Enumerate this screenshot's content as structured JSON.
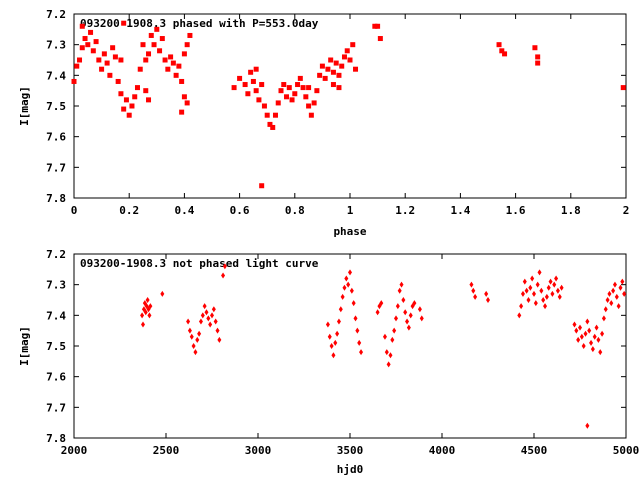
{
  "chart_data": [
    {
      "type": "scatter",
      "title": "093200-1908.3 phased with P=553.0day",
      "xlabel": "phase",
      "ylabel": "I[mag]",
      "xlim": [
        0,
        2
      ],
      "ylim": [
        7.2,
        7.8
      ],
      "y_inverted": true,
      "xticks": [
        0,
        0.2,
        0.4,
        0.6,
        0.8,
        1,
        1.2,
        1.4,
        1.6,
        1.8,
        2
      ],
      "xtick_labels": [
        "0",
        "0.2",
        "0.4",
        "0.6",
        "0.8",
        "1",
        "1.2",
        "1.4",
        "1.6",
        "1.8",
        "2"
      ],
      "yticks": [
        7.2,
        7.3,
        7.4,
        7.5,
        7.6,
        7.7,
        7.8
      ],
      "ytick_labels": [
        "7.2",
        "7.3",
        "7.4",
        "7.5",
        "7.6",
        "7.7",
        "7.8"
      ],
      "grid": false,
      "marker_color": "#ff0000",
      "series": [
        {
          "points": [
            [
              0.0,
              7.42
            ],
            [
              0.01,
              7.37
            ],
            [
              0.02,
              7.35
            ],
            [
              0.03,
              7.31
            ],
            [
              0.04,
              7.28
            ],
            [
              0.05,
              7.3
            ],
            [
              0.06,
              7.26
            ],
            [
              0.07,
              7.32
            ],
            [
              0.08,
              7.29
            ],
            [
              0.09,
              7.35
            ],
            [
              0.1,
              7.38
            ],
            [
              0.11,
              7.33
            ],
            [
              0.12,
              7.36
            ],
            [
              0.13,
              7.4
            ],
            [
              0.14,
              7.31
            ],
            [
              0.15,
              7.34
            ],
            [
              0.16,
              7.42
            ],
            [
              0.17,
              7.46
            ],
            [
              0.18,
              7.51
            ],
            [
              0.19,
              7.48
            ],
            [
              0.2,
              7.53
            ],
            [
              0.21,
              7.5
            ],
            [
              0.22,
              7.47
            ],
            [
              0.23,
              7.44
            ],
            [
              0.24,
              7.38
            ],
            [
              0.25,
              7.3
            ],
            [
              0.26,
              7.35
            ],
            [
              0.27,
              7.33
            ],
            [
              0.28,
              7.27
            ],
            [
              0.29,
              7.3
            ],
            [
              0.3,
              7.25
            ],
            [
              0.31,
              7.32
            ],
            [
              0.32,
              7.28
            ],
            [
              0.33,
              7.35
            ],
            [
              0.34,
              7.38
            ],
            [
              0.35,
              7.34
            ],
            [
              0.36,
              7.36
            ],
            [
              0.37,
              7.4
            ],
            [
              0.38,
              7.37
            ],
            [
              0.39,
              7.42
            ],
            [
              0.4,
              7.33
            ],
            [
              0.41,
              7.3
            ],
            [
              0.42,
              7.27
            ],
            [
              0.03,
              7.24
            ],
            [
              0.18,
              7.23
            ],
            [
              0.17,
              7.35
            ],
            [
              0.27,
              7.48
            ],
            [
              0.26,
              7.45
            ],
            [
              0.4,
              7.47
            ],
            [
              0.41,
              7.49
            ],
            [
              0.39,
              7.52
            ],
            [
              0.58,
              7.44
            ],
            [
              0.6,
              7.41
            ],
            [
              0.62,
              7.43
            ],
            [
              0.63,
              7.46
            ],
            [
              0.64,
              7.39
            ],
            [
              0.65,
              7.42
            ],
            [
              0.66,
              7.45
            ],
            [
              0.67,
              7.48
            ],
            [
              0.68,
              7.43
            ],
            [
              0.69,
              7.5
            ],
            [
              0.7,
              7.53
            ],
            [
              0.71,
              7.56
            ],
            [
              0.72,
              7.57
            ],
            [
              0.73,
              7.53
            ],
            [
              0.74,
              7.49
            ],
            [
              0.75,
              7.45
            ],
            [
              0.76,
              7.43
            ],
            [
              0.77,
              7.47
            ],
            [
              0.78,
              7.44
            ],
            [
              0.79,
              7.48
            ],
            [
              0.8,
              7.46
            ],
            [
              0.81,
              7.43
            ],
            [
              0.82,
              7.41
            ],
            [
              0.83,
              7.44
            ],
            [
              0.84,
              7.47
            ],
            [
              0.85,
              7.5
            ],
            [
              0.86,
              7.53
            ],
            [
              0.87,
              7.49
            ],
            [
              0.88,
              7.45
            ],
            [
              0.89,
              7.4
            ],
            [
              0.9,
              7.37
            ],
            [
              0.91,
              7.41
            ],
            [
              0.92,
              7.38
            ],
            [
              0.93,
              7.35
            ],
            [
              0.94,
              7.39
            ],
            [
              0.95,
              7.36
            ],
            [
              0.96,
              7.4
            ],
            [
              0.97,
              7.37
            ],
            [
              0.98,
              7.34
            ],
            [
              0.99,
              7.32
            ],
            [
              1.0,
              7.35
            ],
            [
              1.01,
              7.3
            ],
            [
              1.02,
              7.38
            ],
            [
              0.68,
              7.76
            ],
            [
              0.66,
              7.38
            ],
            [
              0.94,
              7.43
            ],
            [
              0.96,
              7.44
            ],
            [
              0.85,
              7.44
            ],
            [
              1.09,
              7.24
            ],
            [
              1.1,
              7.24
            ],
            [
              1.11,
              7.28
            ],
            [
              1.54,
              7.3
            ],
            [
              1.55,
              7.32
            ],
            [
              1.56,
              7.33
            ],
            [
              1.67,
              7.31
            ],
            [
              1.68,
              7.34
            ],
            [
              1.68,
              7.36
            ],
            [
              1.99,
              7.44
            ]
          ]
        }
      ]
    },
    {
      "type": "scatter",
      "title": "093200-1908.3 not phased light curve",
      "xlabel": "hjd0",
      "ylabel": "I[mag]",
      "xlim": [
        2000,
        5000
      ],
      "ylim": [
        7.2,
        7.8
      ],
      "y_inverted": true,
      "xticks": [
        2000,
        2500,
        3000,
        3500,
        4000,
        4500,
        5000
      ],
      "xtick_labels": [
        "2000",
        "2500",
        "3000",
        "3500",
        "4000",
        "4500",
        "5000"
      ],
      "yticks": [
        7.2,
        7.3,
        7.4,
        7.5,
        7.6,
        7.7,
        7.8
      ],
      "ytick_labels": [
        "7.2",
        "7.3",
        "7.4",
        "7.5",
        "7.6",
        "7.7",
        "7.8"
      ],
      "grid": false,
      "marker_color": "#ff0000",
      "series": [
        {
          "points": [
            [
              2370,
              7.4
            ],
            [
              2375,
              7.43
            ],
            [
              2380,
              7.38
            ],
            [
              2385,
              7.36
            ],
            [
              2390,
              7.39
            ],
            [
              2395,
              7.37
            ],
            [
              2400,
              7.35
            ],
            [
              2405,
              7.38
            ],
            [
              2410,
              7.4
            ],
            [
              2415,
              7.37
            ],
            [
              2480,
              7.33
            ],
            [
              2620,
              7.42
            ],
            [
              2630,
              7.45
            ],
            [
              2640,
              7.47
            ],
            [
              2650,
              7.5
            ],
            [
              2660,
              7.52
            ],
            [
              2670,
              7.48
            ],
            [
              2680,
              7.46
            ],
            [
              2690,
              7.42
            ],
            [
              2700,
              7.4
            ],
            [
              2710,
              7.37
            ],
            [
              2720,
              7.39
            ],
            [
              2730,
              7.41
            ],
            [
              2740,
              7.43
            ],
            [
              2750,
              7.4
            ],
            [
              2760,
              7.38
            ],
            [
              2770,
              7.42
            ],
            [
              2780,
              7.45
            ],
            [
              2790,
              7.48
            ],
            [
              2810,
              7.27
            ],
            [
              2820,
              7.24
            ],
            [
              3380,
              7.43
            ],
            [
              3390,
              7.47
            ],
            [
              3400,
              7.5
            ],
            [
              3410,
              7.53
            ],
            [
              3420,
              7.49
            ],
            [
              3430,
              7.46
            ],
            [
              3440,
              7.42
            ],
            [
              3450,
              7.38
            ],
            [
              3460,
              7.34
            ],
            [
              3470,
              7.31
            ],
            [
              3480,
              7.28
            ],
            [
              3490,
              7.3
            ],
            [
              3500,
              7.26
            ],
            [
              3510,
              7.32
            ],
            [
              3520,
              7.36
            ],
            [
              3530,
              7.41
            ],
            [
              3540,
              7.45
            ],
            [
              3550,
              7.49
            ],
            [
              3560,
              7.52
            ],
            [
              3650,
              7.39
            ],
            [
              3660,
              7.37
            ],
            [
              3670,
              7.36
            ],
            [
              3690,
              7.47
            ],
            [
              3700,
              7.52
            ],
            [
              3710,
              7.56
            ],
            [
              3720,
              7.53
            ],
            [
              3730,
              7.48
            ],
            [
              3740,
              7.45
            ],
            [
              3750,
              7.41
            ],
            [
              3760,
              7.37
            ],
            [
              3770,
              7.32
            ],
            [
              3780,
              7.3
            ],
            [
              3790,
              7.35
            ],
            [
              3800,
              7.39
            ],
            [
              3810,
              7.42
            ],
            [
              3820,
              7.44
            ],
            [
              3830,
              7.4
            ],
            [
              3840,
              7.37
            ],
            [
              3850,
              7.36
            ],
            [
              3880,
              7.38
            ],
            [
              3890,
              7.41
            ],
            [
              4160,
              7.3
            ],
            [
              4170,
              7.32
            ],
            [
              4180,
              7.34
            ],
            [
              4240,
              7.33
            ],
            [
              4250,
              7.35
            ],
            [
              4420,
              7.4
            ],
            [
              4430,
              7.37
            ],
            [
              4440,
              7.33
            ],
            [
              4450,
              7.29
            ],
            [
              4460,
              7.32
            ],
            [
              4470,
              7.35
            ],
            [
              4480,
              7.31
            ],
            [
              4490,
              7.28
            ],
            [
              4500,
              7.33
            ],
            [
              4510,
              7.36
            ],
            [
              4520,
              7.3
            ],
            [
              4530,
              7.26
            ],
            [
              4540,
              7.32
            ],
            [
              4550,
              7.35
            ],
            [
              4560,
              7.37
            ],
            [
              4570,
              7.34
            ],
            [
              4580,
              7.31
            ],
            [
              4590,
              7.29
            ],
            [
              4600,
              7.33
            ],
            [
              4610,
              7.3
            ],
            [
              4620,
              7.28
            ],
            [
              4630,
              7.32
            ],
            [
              4640,
              7.34
            ],
            [
              4650,
              7.31
            ],
            [
              4720,
              7.43
            ],
            [
              4730,
              7.45
            ],
            [
              4740,
              7.48
            ],
            [
              4750,
              7.44
            ],
            [
              4760,
              7.47
            ],
            [
              4770,
              7.5
            ],
            [
              4780,
              7.46
            ],
            [
              4790,
              7.42
            ],
            [
              4800,
              7.45
            ],
            [
              4810,
              7.49
            ],
            [
              4820,
              7.51
            ],
            [
              4830,
              7.47
            ],
            [
              4840,
              7.44
            ],
            [
              4850,
              7.48
            ],
            [
              4860,
              7.52
            ],
            [
              4870,
              7.46
            ],
            [
              4880,
              7.41
            ],
            [
              4890,
              7.38
            ],
            [
              4900,
              7.35
            ],
            [
              4910,
              7.33
            ],
            [
              4920,
              7.36
            ],
            [
              4930,
              7.32
            ],
            [
              4940,
              7.3
            ],
            [
              4950,
              7.34
            ],
            [
              4960,
              7.37
            ],
            [
              4970,
              7.31
            ],
            [
              4980,
              7.29
            ],
            [
              4990,
              7.33
            ],
            [
              4790,
              7.76
            ]
          ]
        }
      ]
    }
  ]
}
